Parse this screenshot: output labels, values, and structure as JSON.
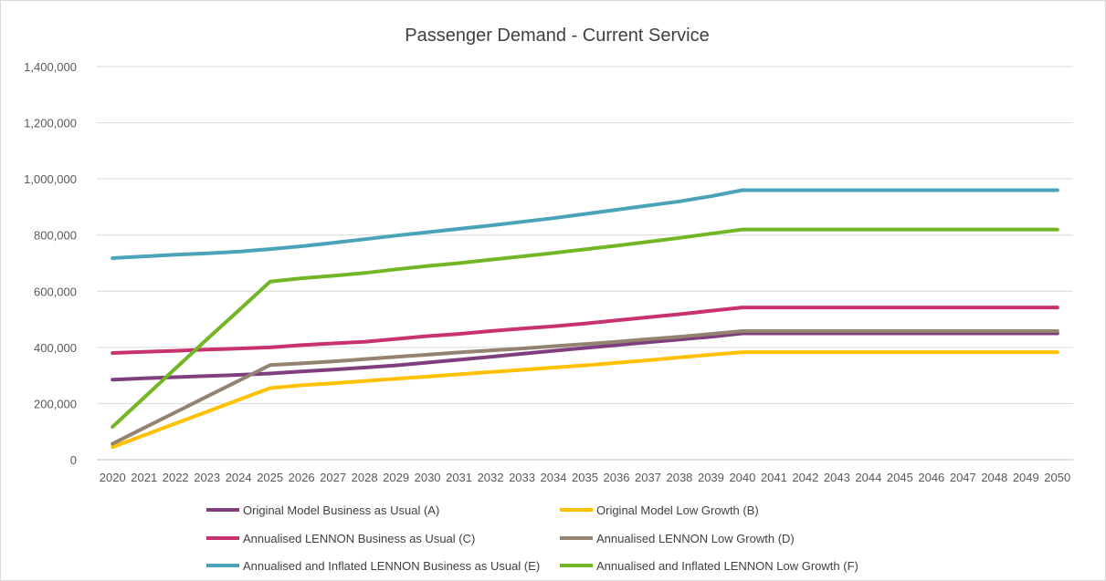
{
  "chart_data": {
    "type": "line",
    "title": "Passenger Demand - Current Service",
    "xlabel": "",
    "ylabel": "",
    "ylim": [
      0,
      1400000
    ],
    "yticks": [
      0,
      200000,
      400000,
      600000,
      800000,
      1000000,
      1200000,
      1400000
    ],
    "ytick_labels": [
      "0",
      "200,000",
      "400,000",
      "600,000",
      "800,000",
      "1,000,000",
      "1,200,000",
      "1,400,000"
    ],
    "grid": true,
    "legend_position": "bottom",
    "x": [
      "2020",
      "2021",
      "2022",
      "2023",
      "2024",
      "2025",
      "2026",
      "2027",
      "2028",
      "2029",
      "2030",
      "2031",
      "2032",
      "2033",
      "2034",
      "2035",
      "2036",
      "2037",
      "2038",
      "2039",
      "2040",
      "2041",
      "2042",
      "2043",
      "2044",
      "2045",
      "2046",
      "2047",
      "2048",
      "2049",
      "2050"
    ],
    "series": [
      {
        "name": "Original Model Business as Usual (A)",
        "color": "#7f3f7f",
        "values": [
          285000,
          290000,
          294000,
          298000,
          302000,
          307000,
          314000,
          321000,
          328000,
          336000,
          346000,
          356000,
          366000,
          377000,
          388000,
          398000,
          408000,
          418000,
          428000,
          438000,
          450000,
          450000,
          450000,
          450000,
          450000,
          450000,
          450000,
          450000,
          450000,
          450000,
          450000
        ]
      },
      {
        "name": "Original Model Low Growth (B)",
        "color": "#ffc000",
        "values": [
          45000,
          87000,
          129000,
          171000,
          213000,
          255000,
          265000,
          272000,
          280000,
          288000,
          296000,
          304000,
          312000,
          320000,
          328000,
          336000,
          345000,
          354000,
          364000,
          374000,
          383000,
          383000,
          383000,
          383000,
          383000,
          383000,
          383000,
          383000,
          383000,
          383000,
          383000
        ]
      },
      {
        "name": "Annualised LENNON Business as Usual (C)",
        "color": "#c8326e",
        "values": [
          380000,
          384000,
          388000,
          392000,
          396000,
          400000,
          408000,
          414000,
          420000,
          430000,
          440000,
          448000,
          458000,
          467000,
          475000,
          485000,
          496000,
          507000,
          518000,
          530000,
          542000,
          542000,
          542000,
          542000,
          542000,
          542000,
          542000,
          542000,
          542000,
          542000,
          542000
        ]
      },
      {
        "name": "Annualised LENNON Low Growth (D)",
        "color": "#938370",
        "values": [
          57000,
          113000,
          169000,
          225000,
          281000,
          337000,
          343000,
          350000,
          358000,
          366000,
          374000,
          382000,
          389000,
          396000,
          404000,
          412000,
          420000,
          429000,
          438000,
          448000,
          458000,
          458000,
          458000,
          458000,
          458000,
          458000,
          458000,
          458000,
          458000,
          458000,
          458000
        ]
      },
      {
        "name": "Annualised and Inflated LENNON Business as Usual (E)",
        "color": "#4aa3b8",
        "values": [
          718000,
          724000,
          730000,
          735000,
          741000,
          750000,
          760000,
          772000,
          785000,
          798000,
          810000,
          822000,
          834000,
          847000,
          860000,
          875000,
          890000,
          905000,
          920000,
          938000,
          960000,
          960000,
          960000,
          960000,
          960000,
          960000,
          960000,
          960000,
          960000,
          960000,
          960000
        ]
      },
      {
        "name": "Annualised and Inflated LENNON Low Growth (F)",
        "color": "#72b626",
        "values": [
          117000,
          221000,
          325000,
          429000,
          531000,
          634000,
          646000,
          655000,
          665000,
          678000,
          690000,
          700000,
          712000,
          724000,
          736000,
          749000,
          762000,
          776000,
          790000,
          805000,
          820000,
          820000,
          820000,
          820000,
          820000,
          820000,
          820000,
          820000,
          820000,
          820000,
          820000
        ]
      }
    ]
  }
}
